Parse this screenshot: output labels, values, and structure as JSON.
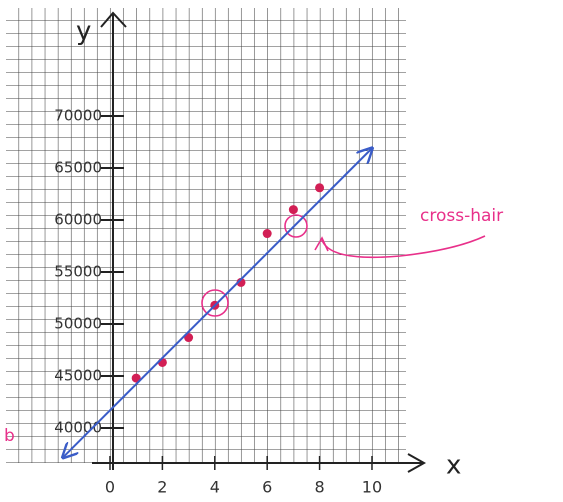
{
  "chart_data": {
    "type": "scatter",
    "axis_labels": {
      "y": "y",
      "x": "x"
    },
    "annotations": [
      "cross-hair",
      "b"
    ],
    "xlim": [
      -4,
      11.6
    ],
    "ylim": [
      36500,
      79500
    ],
    "xticks": [
      0,
      2,
      4,
      6,
      8,
      10
    ],
    "yticks": [
      40000,
      45000,
      50000,
      55000,
      60000,
      65000,
      70000
    ],
    "series": [
      {
        "type": "scatter",
        "color": "#d21f55",
        "x": [
          1,
          2,
          3,
          4,
          5,
          6,
          7,
          8
        ],
        "values": [
          44800,
          46300,
          48700,
          51800,
          54000,
          58700,
          61000,
          63100
        ]
      },
      {
        "type": "line",
        "color": "#3a5cc8",
        "x": [
          -1.8,
          10
        ],
        "values": [
          37160,
          66900
        ]
      }
    ]
  }
}
